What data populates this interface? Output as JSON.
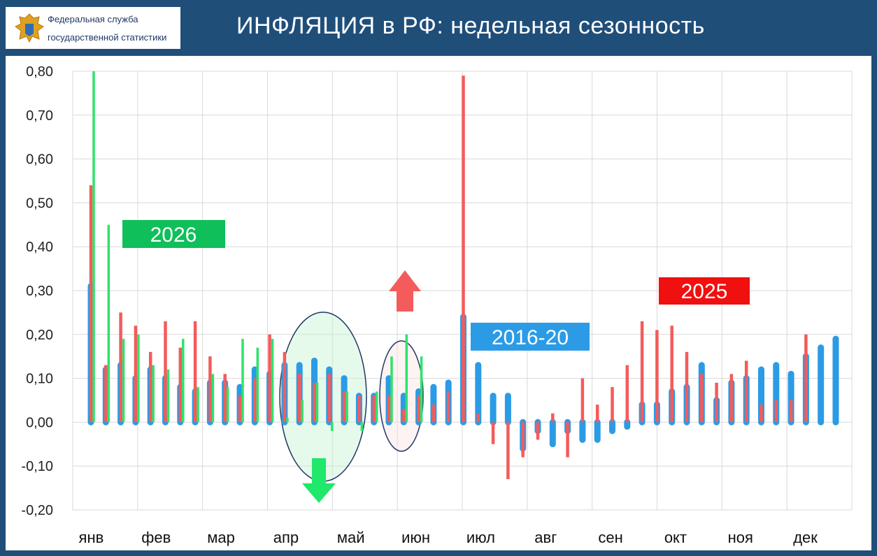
{
  "header": {
    "title": "ИНФЛЯЦИЯ в РФ: недельная сезонность",
    "logo_line1": "Федеральная служба",
    "logo_line2": "государственной статистики"
  },
  "colors": {
    "header_bg": "#1f4e79",
    "series_2016_20": "#2b9be6",
    "series_2025": "#f45b5b",
    "series_2026": "#2fe36b",
    "grid": "#d9d9d9"
  },
  "chart_data": {
    "type": "bar",
    "ylim": [
      -0.2,
      0.8
    ],
    "yticks": [
      "0,80",
      "0,70",
      "0,60",
      "0,50",
      "0,40",
      "0,30",
      "0,20",
      "0,10",
      "0,00",
      "-0,10",
      "-0,20"
    ],
    "ytick_values": [
      0.8,
      0.7,
      0.6,
      0.5,
      0.4,
      0.3,
      0.2,
      0.1,
      0.0,
      -0.1,
      -0.2
    ],
    "x_month_labels": [
      "янв",
      "фев",
      "мар",
      "апр",
      "май",
      "июн",
      "июл",
      "авг",
      "сен",
      "окт",
      "ноя",
      "дек"
    ],
    "grid": true,
    "series": [
      {
        "name": "2016-20",
        "values": [
          0.31,
          0.12,
          0.13,
          0.1,
          0.12,
          0.1,
          0.08,
          0.07,
          0.09,
          0.09,
          0.08,
          0.12,
          0.11,
          0.13,
          0.13,
          0.14,
          0.12,
          0.1,
          0.06,
          0.06,
          0.1,
          0.06,
          0.07,
          0.08,
          0.09,
          0.24,
          0.13,
          0.06,
          0.06,
          -0.06,
          -0.02,
          -0.05,
          -0.02,
          -0.04,
          -0.04,
          -0.02,
          -0.01,
          0.04,
          0.04,
          0.07,
          0.08,
          0.13,
          0.05,
          0.09,
          0.1,
          0.12,
          0.13,
          0.11,
          0.15,
          0.17,
          0.19
        ]
      },
      {
        "name": "2025",
        "values": [
          0.54,
          0.13,
          0.25,
          0.22,
          0.16,
          0.23,
          0.17,
          0.23,
          0.15,
          0.11,
          0.06,
          0.1,
          0.2,
          0.16,
          0.11,
          0.09,
          0.11,
          0.07,
          0.06,
          0.06,
          0.06,
          0.03,
          0.06,
          0.04,
          0.07,
          0.79,
          0.02,
          -0.05,
          -0.13,
          -0.08,
          -0.04,
          0.02,
          -0.08,
          0.1,
          0.04,
          0.08,
          0.13,
          0.23,
          0.21,
          0.22,
          0.16,
          0.11,
          0.09,
          0.11,
          0.14,
          0.04,
          0.05,
          0.05,
          0.2
        ]
      },
      {
        "name": "2026",
        "values": [
          0.8,
          0.45,
          0.19,
          0.2,
          0.13,
          0.12,
          0.19,
          0.08,
          0.11,
          0.08,
          0.19,
          0.17,
          0.19,
          0.01,
          0.05,
          0.09,
          -0.02,
          0.07,
          -0.02,
          0.07,
          0.15,
          0.2,
          0.15
        ]
      }
    ],
    "annotations": [
      "2026",
      "2025",
      "2016-20"
    ]
  }
}
